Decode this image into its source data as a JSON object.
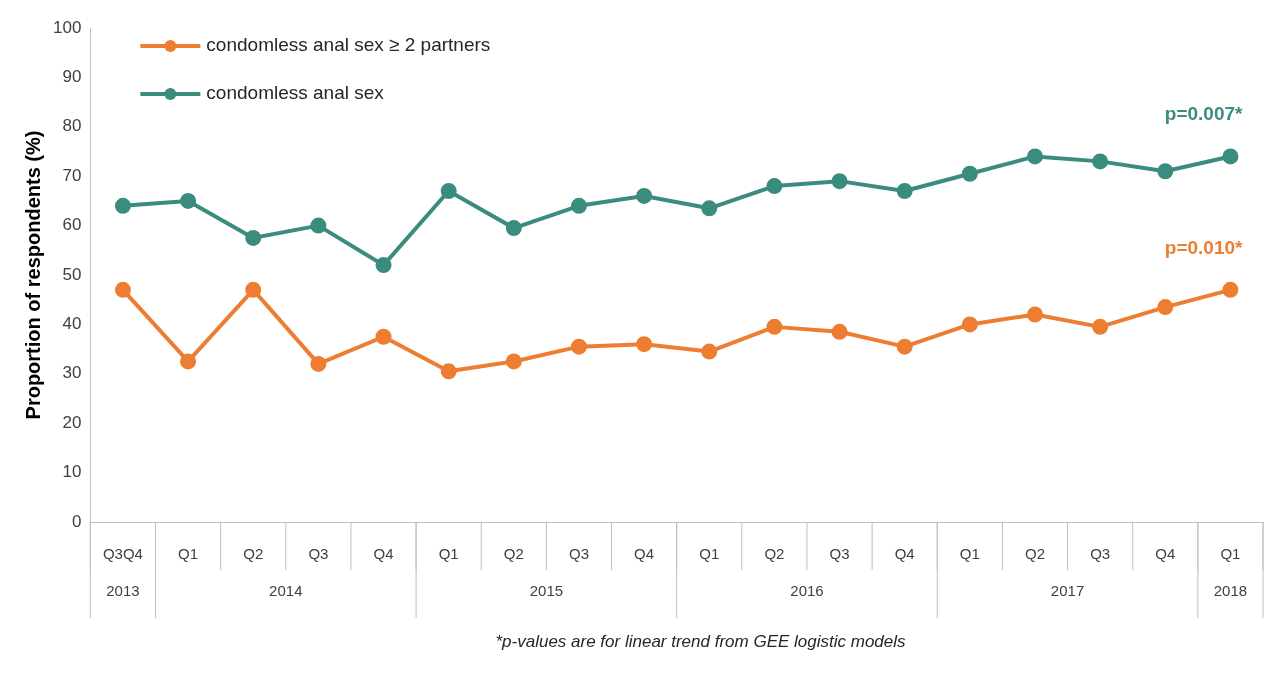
{
  "chart_data": {
    "type": "line",
    "ylabel": "Proportion of respondents (%)",
    "categories": [
      "Q3Q4",
      "Q1",
      "Q2",
      "Q3",
      "Q4",
      "Q1",
      "Q2",
      "Q3",
      "Q4",
      "Q1",
      "Q2",
      "Q3",
      "Q4",
      "Q1",
      "Q2",
      "Q3",
      "Q4",
      "Q1"
    ],
    "series": [
      {
        "name": "condomless anal sex ≥ 2 partners",
        "color": "#ed7d31",
        "values": [
          47,
          32.5,
          47,
          32,
          37.5,
          30.5,
          32.5,
          35.5,
          36,
          34.5,
          39.5,
          38.5,
          35.5,
          40,
          42,
          39.5,
          43.5,
          47
        ]
      },
      {
        "name": "condomless anal sex",
        "color": "#3a8c7e",
        "values": [
          64,
          65,
          57.5,
          60,
          52,
          67,
          59.5,
          64,
          66,
          63.5,
          68,
          69,
          67,
          70.5,
          74,
          73,
          71,
          74
        ]
      }
    ],
    "ylim": [
      0,
      100
    ],
    "yticks": [
      0,
      10,
      20,
      30,
      40,
      50,
      60,
      70,
      80,
      90,
      100
    ],
    "grid": false,
    "legend": "top left",
    "marker": "circle",
    "line_style": "solid",
    "annotations": [
      "p=0.007*",
      "p=0.010*",
      "2013",
      "2014",
      "2015",
      "2016",
      "2017",
      "2018",
      "*p-values are for linear trend from GEE logistic models"
    ]
  }
}
